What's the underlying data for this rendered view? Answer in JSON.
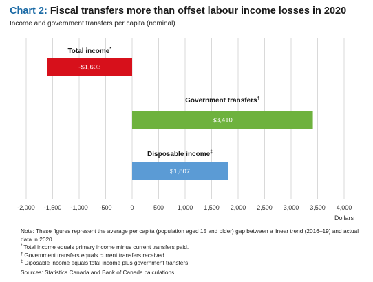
{
  "header": {
    "chart_label": "Chart 2:",
    "title": "Fiscal transfers more than offset labour income losses in 2020",
    "subtitle": "Income and government transfers per capita (nominal)"
  },
  "chart_data": {
    "type": "bar",
    "orientation": "horizontal",
    "categories": [
      "Total income*",
      "Government transfers†",
      "Disposable income‡"
    ],
    "values": [
      -1603,
      3410,
      1807
    ],
    "value_labels": [
      "-$1,603",
      "$3,410",
      "$1,807"
    ],
    "colors": [
      "#d7101b",
      "#6eb23e",
      "#5b9bd5"
    ],
    "xlabel": "Dollars",
    "xlim": [
      -2000,
      4000
    ],
    "xticks": [
      -2000,
      -1500,
      -1000,
      -500,
      0,
      500,
      1000,
      1500,
      2000,
      2500,
      3000,
      3500,
      4000
    ],
    "xtick_labels": [
      "-2,000",
      "-1,500",
      "-1,000",
      "-500",
      "0",
      "500",
      "1,000",
      "1,500",
      "2,000",
      "2,500",
      "3,000",
      "3,500",
      "4,000"
    ],
    "grid": true
  },
  "notes": {
    "note": "Note: These figures represent the average per capita (population aged 15 and older) gap between a linear trend (2016–19) and actual data in 2020.",
    "footnotes": [
      {
        "mark": "*",
        "text": "Total income equals primary income minus current transfers paid."
      },
      {
        "mark": "†",
        "text": "Government transfers equals current transfers received."
      },
      {
        "mark": "‡",
        "text": "Diposable income equals total income plus government transfers."
      }
    ],
    "source": "Sources: Statistics Canada and Bank of Canada calculations"
  }
}
